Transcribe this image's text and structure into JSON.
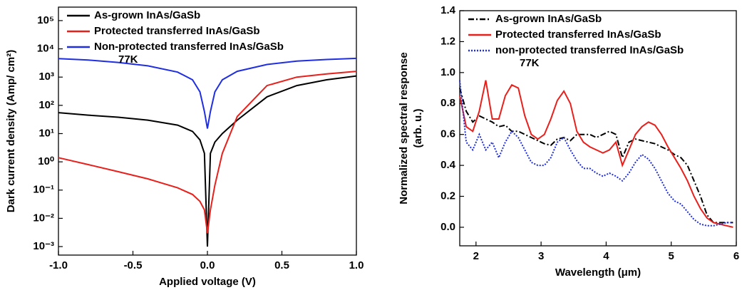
{
  "chart_data": [
    {
      "type": "line",
      "yscale": "log",
      "xlabel": "Applied voltage (V)",
      "ylabel": "Dark current density (Amp/ cm²)",
      "annotation": "77K",
      "xlim": [
        -1,
        1
      ],
      "xticks": [
        {
          "value": -1,
          "label": "-1.0"
        },
        {
          "value": -0.5,
          "label": "-0.5"
        },
        {
          "value": 0,
          "label": "0.0"
        },
        {
          "value": 0.5,
          "label": "0.5"
        },
        {
          "value": 1,
          "label": "1.0"
        }
      ],
      "ylim": [
        0.0005,
        300000
      ],
      "yticks": [
        {
          "value": 0.001,
          "label": "10⁻³"
        },
        {
          "value": 0.01,
          "label": "10⁻²"
        },
        {
          "value": 0.1,
          "label": "10⁻¹"
        },
        {
          "value": 1,
          "label": "10⁰"
        },
        {
          "value": 10,
          "label": "10¹"
        },
        {
          "value": 100,
          "label": "10²"
        },
        {
          "value": 1000,
          "label": "10³"
        },
        {
          "value": 10000,
          "label": "10⁴"
        },
        {
          "value": 100000,
          "label": "10⁵"
        }
      ],
      "x": [
        -1,
        -0.8,
        -0.6,
        -0.4,
        -0.2,
        -0.1,
        -0.05,
        -0.02,
        0,
        0.02,
        0.05,
        0.1,
        0.2,
        0.4,
        0.6,
        0.8,
        1
      ],
      "series": [
        {
          "name": "As-grown InAs/GaSb",
          "color": "#000000",
          "linestyle": "solid",
          "values": [
            55,
            45,
            38,
            30,
            20,
            12,
            6,
            2,
            0.001,
            2,
            5,
            10,
            30,
            200,
            500,
            800,
            1100
          ]
        },
        {
          "name": "Protected transferred InAs/GaSb",
          "color": "#e8201c",
          "linestyle": "solid",
          "values": [
            1.4,
            0.8,
            0.45,
            0.25,
            0.12,
            0.07,
            0.04,
            0.02,
            0.003,
            0.02,
            0.15,
            2,
            40,
            500,
            1000,
            1300,
            1600
          ]
        },
        {
          "name": "Non-protected transferred InAs/GaSb",
          "color": "#1f2ee0",
          "linestyle": "solid",
          "values": [
            4500,
            4000,
            3300,
            2500,
            1500,
            800,
            300,
            60,
            15,
            60,
            300,
            800,
            1600,
            2800,
            3700,
            4200,
            4600
          ]
        }
      ]
    },
    {
      "type": "line",
      "yscale": "linear",
      "xlabel": "Wavelength (μm)",
      "ylabel": [
        "Normalized spectral response",
        "(arb. u.)"
      ],
      "annotation": "77K",
      "xlim": [
        1.75,
        6
      ],
      "xticks": [
        2,
        3,
        4,
        5,
        6
      ],
      "ylim": [
        -0.12,
        1.4
      ],
      "yticks": [
        {
          "value": 0,
          "label": "0.0"
        },
        {
          "value": 0.2,
          "label": "0.2"
        },
        {
          "value": 0.4,
          "label": "0.4"
        },
        {
          "value": 0.6,
          "label": "0.6"
        },
        {
          "value": 0.8,
          "label": "0.8"
        },
        {
          "value": 1,
          "label": "1.0"
        },
        {
          "value": 1.2,
          "label": "1.2"
        },
        {
          "value": 1.4,
          "label": "1.4"
        }
      ],
      "x": [
        1.75,
        1.85,
        1.95,
        2.05,
        2.15,
        2.25,
        2.35,
        2.45,
        2.55,
        2.65,
        2.75,
        2.85,
        2.95,
        3.05,
        3.15,
        3.25,
        3.35,
        3.45,
        3.55,
        3.65,
        3.75,
        3.85,
        3.95,
        4.05,
        4.15,
        4.25,
        4.35,
        4.45,
        4.55,
        4.65,
        4.75,
        4.85,
        4.95,
        5.05,
        5.15,
        5.25,
        5.35,
        5.45,
        5.55,
        5.65,
        5.75,
        5.85,
        5.95
      ],
      "series": [
        {
          "name": "As-grown InAs/GaSb",
          "color": "#000000",
          "linestyle": "dashdot",
          "values": [
            0.9,
            0.75,
            0.68,
            0.72,
            0.7,
            0.68,
            0.65,
            0.66,
            0.62,
            0.62,
            0.6,
            0.58,
            0.56,
            0.54,
            0.53,
            0.57,
            0.58,
            0.56,
            0.6,
            0.6,
            0.6,
            0.58,
            0.6,
            0.62,
            0.6,
            0.45,
            0.55,
            0.57,
            0.56,
            0.55,
            0.54,
            0.52,
            0.5,
            0.47,
            0.45,
            0.4,
            0.3,
            0.2,
            0.08,
            0.03,
            0.03,
            0.03,
            0.03
          ]
        },
        {
          "name": "Protected transferred InAs/GaSb",
          "color": "#e8201c",
          "linestyle": "solid",
          "values": [
            0.85,
            0.65,
            0.62,
            0.75,
            0.95,
            0.7,
            0.7,
            0.85,
            0.92,
            0.9,
            0.72,
            0.6,
            0.57,
            0.6,
            0.7,
            0.82,
            0.88,
            0.8,
            0.62,
            0.55,
            0.52,
            0.5,
            0.48,
            0.5,
            0.55,
            0.4,
            0.5,
            0.6,
            0.65,
            0.68,
            0.66,
            0.6,
            0.52,
            0.45,
            0.38,
            0.3,
            0.2,
            0.12,
            0.06,
            0.03,
            0.02,
            0.01,
            0
          ]
        },
        {
          "name": "non-protected transferred InAs/GaSb",
          "color": "#1f2ee0",
          "linestyle": "dotted",
          "values": [
            0.95,
            0.55,
            0.5,
            0.6,
            0.5,
            0.55,
            0.45,
            0.55,
            0.62,
            0.58,
            0.5,
            0.42,
            0.4,
            0.4,
            0.45,
            0.55,
            0.58,
            0.5,
            0.43,
            0.38,
            0.38,
            0.35,
            0.33,
            0.35,
            0.33,
            0.3,
            0.35,
            0.42,
            0.47,
            0.44,
            0.38,
            0.3,
            0.22,
            0.17,
            0.15,
            0.1,
            0.05,
            0.02,
            0.01,
            0.01,
            0.02,
            0.03,
            0.03
          ]
        }
      ]
    }
  ]
}
